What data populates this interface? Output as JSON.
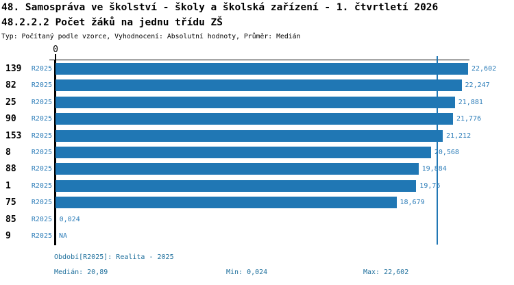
{
  "header": {
    "title": "48. Samospráva ve školství - školy a školská zařízení - 1. čtvrtletí 2026",
    "subtitle": "48.2.2.2 Počet žáků na jednu třídu ZŠ",
    "type_line": "Typ: Počítaný podle vzorce, Vyhodnocení: Absolutní hodnoty, Průměr: Medián"
  },
  "colors": {
    "bar": "#2077B4",
    "value_label": "#2B7CB8",
    "footer_text": "#1E6F9C",
    "axis": "#000000"
  },
  "chart_data": {
    "type": "bar",
    "orientation": "horizontal",
    "title": "48.2.2.2 Počet žáků na jednu třídu ZŠ",
    "x_axis": {
      "tick_label": "0",
      "min": 0,
      "max": 22.602,
      "grid": false
    },
    "median": {
      "value": 20.89
    },
    "categories": [
      "139",
      "82",
      "25",
      "90",
      "153",
      "8",
      "88",
      "1",
      "75",
      "85",
      "9"
    ],
    "series": [
      {
        "name": "R2025",
        "values": [
          22.602,
          22.247,
          21.881,
          21.776,
          21.212,
          20.568,
          19.884,
          19.76,
          18.679,
          0.024,
          null
        ]
      }
    ],
    "rows": [
      {
        "id": "139",
        "period": "R2025",
        "value": 22.602,
        "value_label": "22,602"
      },
      {
        "id": "82",
        "period": "R2025",
        "value": 22.247,
        "value_label": "22,247"
      },
      {
        "id": "25",
        "period": "R2025",
        "value": 21.881,
        "value_label": "21,881"
      },
      {
        "id": "90",
        "period": "R2025",
        "value": 21.776,
        "value_label": "21,776"
      },
      {
        "id": "153",
        "period": "R2025",
        "value": 21.212,
        "value_label": "21,212"
      },
      {
        "id": "8",
        "period": "R2025",
        "value": 20.568,
        "value_label": "20,568"
      },
      {
        "id": "88",
        "period": "R2025",
        "value": 19.884,
        "value_label": "19,884"
      },
      {
        "id": "1",
        "period": "R2025",
        "value": 19.76,
        "value_label": "19,76"
      },
      {
        "id": "75",
        "period": "R2025",
        "value": 18.679,
        "value_label": "18,679"
      },
      {
        "id": "85",
        "period": "R2025",
        "value": 0.024,
        "value_label": "0,024"
      },
      {
        "id": "9",
        "period": "R2025",
        "value": null,
        "value_label": "NA"
      }
    ]
  },
  "footer": {
    "period_line": "Období[R2025]: Realita - 2025",
    "median": "Medián: 20,89",
    "min": "Min: 0,024",
    "max": "Max: 22,602"
  }
}
